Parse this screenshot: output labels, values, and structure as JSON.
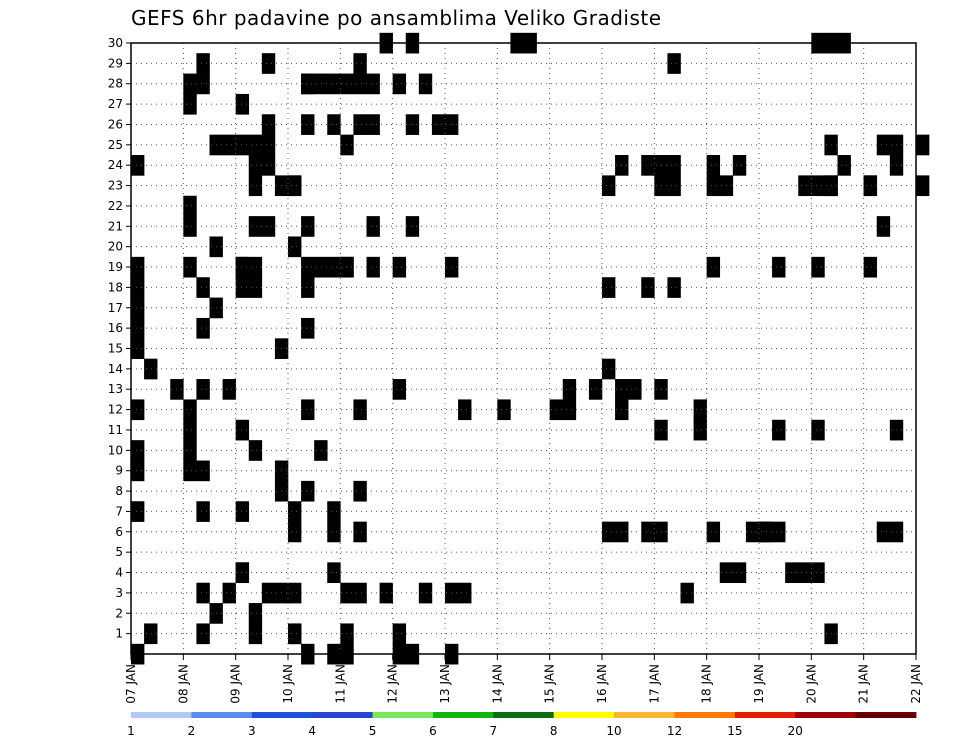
{
  "title": "GEFS 6hr padavine po ansamblima Veliko Gradiste",
  "chart_data": {
    "type": "heatmap",
    "title": "GEFS 6hr padavine po ansamblima Veliko Gradiste",
    "x_ticks": [
      "07 JAN",
      "08 JAN",
      "09 JAN",
      "10 JAN",
      "11 JAN",
      "12 JAN",
      "13 JAN",
      "14 JAN",
      "15 JAN",
      "16 JAN",
      "17 JAN",
      "18 JAN",
      "19 JAN",
      "20 JAN",
      "21 JAN",
      "22 JAN"
    ],
    "y_ticks": [
      "1",
      "2",
      "3",
      "4",
      "5",
      "6",
      "7",
      "8",
      "9",
      "10",
      "11",
      "12",
      "13",
      "14",
      "15",
      "16",
      "17",
      "18",
      "19",
      "20",
      "21",
      "22",
      "23",
      "24",
      "25",
      "26",
      "27",
      "28",
      "29",
      "30"
    ],
    "x_range": [
      "07 JAN 00Z",
      "22 JAN 00Z"
    ],
    "step_hours": 6,
    "y_range": [
      0,
      30
    ],
    "grid": true,
    "colorbar": {
      "levels": [
        "1",
        "2",
        "3",
        "4",
        "5",
        "6",
        "7",
        "8",
        "10",
        "12",
        "15",
        "20"
      ],
      "colors": [
        "#b4c8f5",
        "#5a8cf0",
        "#1e50dc",
        "#2846d2",
        "#78e65a",
        "#14b414",
        "#0a6e14",
        "#ffff00",
        "#ffb432",
        "#ff7800",
        "#e61e00",
        "#a00000",
        "#640000"
      ]
    },
    "cells": [
      [
        30,
        4,
        3
      ],
      [
        30,
        5,
        1
      ],
      [
        30,
        7,
        1
      ],
      [
        30,
        7,
        2
      ],
      [
        30,
        13,
        0
      ],
      [
        30,
        13,
        1
      ],
      [
        30,
        13,
        2
      ],
      [
        29,
        1,
        1
      ],
      [
        29,
        2,
        9
      ],
      [
        29,
        2,
        2
      ],
      [
        29,
        10,
        1
      ],
      [
        28,
        1,
        0
      ],
      [
        28,
        1,
        1
      ],
      [
        28,
        2,
        5
      ],
      [
        28,
        2,
        6
      ],
      [
        28,
        3,
        1
      ],
      [
        28,
        3,
        3
      ],
      [
        28,
        4,
        0
      ],
      [
        28,
        4,
        1
      ],
      [
        28,
        4,
        2
      ],
      [
        28,
        5,
        0
      ],
      [
        28,
        5,
        2
      ],
      [
        27,
        1,
        0
      ],
      [
        27,
        2,
        0
      ],
      [
        26,
        2,
        2
      ],
      [
        26,
        3,
        1
      ],
      [
        26,
        3,
        3
      ],
      [
        26,
        4,
        1
      ],
      [
        26,
        4,
        2
      ],
      [
        26,
        5,
        3
      ],
      [
        26,
        5,
        1
      ],
      [
        26,
        6,
        0
      ],
      [
        25,
        1,
        3
      ],
      [
        25,
        1,
        4
      ],
      [
        25,
        1,
        2
      ],
      [
        25,
        2,
        2
      ],
      [
        25,
        2,
        1
      ],
      [
        25,
        4,
        0
      ],
      [
        25,
        13,
        1
      ],
      [
        25,
        14,
        2
      ],
      [
        25,
        14,
        1
      ],
      [
        25,
        15,
        0
      ],
      [
        24,
        0,
        0
      ],
      [
        24,
        1,
        5
      ],
      [
        24,
        2,
        2
      ],
      [
        24,
        10,
        0
      ],
      [
        24,
        10,
        1
      ],
      [
        24,
        9,
        1
      ],
      [
        24,
        9,
        3
      ],
      [
        24,
        11,
        2
      ],
      [
        24,
        11,
        0
      ],
      [
        24,
        13,
        2
      ],
      [
        24,
        14,
        2
      ],
      [
        23,
        2,
        1
      ],
      [
        23,
        2,
        4
      ],
      [
        23,
        2,
        3
      ],
      [
        23,
        3,
        0
      ],
      [
        23,
        9,
        0
      ],
      [
        23,
        9,
        5
      ],
      [
        23,
        10,
        0
      ],
      [
        23,
        10,
        4
      ],
      [
        23,
        11,
        1
      ],
      [
        23,
        11,
        9
      ],
      [
        23,
        12,
        3
      ],
      [
        23,
        12,
        5
      ],
      [
        23,
        13,
        0
      ],
      [
        23,
        13,
        4
      ],
      [
        23,
        14,
        0
      ],
      [
        23,
        15,
        0
      ],
      [
        23,
        16,
        0
      ],
      [
        22,
        1,
        0
      ],
      [
        21,
        1,
        0
      ],
      [
        21,
        2,
        1
      ],
      [
        21,
        2,
        2
      ],
      [
        21,
        3,
        6
      ],
      [
        21,
        3,
        1
      ],
      [
        21,
        5,
        1
      ],
      [
        21,
        14,
        1
      ],
      [
        20,
        1,
        2
      ],
      [
        20,
        2,
        4
      ],
      [
        19,
        0,
        0
      ],
      [
        19,
        1,
        0
      ],
      [
        19,
        1,
        4
      ],
      [
        19,
        2,
        5
      ],
      [
        19,
        2,
        0
      ],
      [
        19,
        2,
        1
      ],
      [
        19,
        3,
        2
      ],
      [
        19,
        3,
        4
      ],
      [
        19,
        3,
        3
      ],
      [
        19,
        4,
        2
      ],
      [
        19,
        4,
        0
      ],
      [
        19,
        5,
        0
      ],
      [
        19,
        6,
        0
      ],
      [
        19,
        11,
        0
      ],
      [
        19,
        12,
        1
      ],
      [
        19,
        13,
        0
      ],
      [
        19,
        14,
        0
      ],
      [
        18,
        0,
        0
      ],
      [
        18,
        1,
        1
      ],
      [
        18,
        1,
        9
      ],
      [
        18,
        2,
        1
      ],
      [
        18,
        2,
        0
      ],
      [
        18,
        9,
        0
      ],
      [
        18,
        9,
        3
      ],
      [
        18,
        10,
        1
      ],
      [
        17,
        0,
        0
      ],
      [
        17,
        1,
        2
      ],
      [
        16,
        0,
        0
      ],
      [
        16,
        1,
        1
      ],
      [
        16,
        2,
        5
      ],
      [
        15,
        0,
        0
      ],
      [
        15,
        2,
        3
      ],
      [
        15,
        16,
        0
      ],
      [
        14,
        0,
        1
      ],
      [
        14,
        9,
        0
      ],
      [
        13,
        0,
        3
      ],
      [
        13,
        1,
        3
      ],
      [
        13,
        1,
        1
      ],
      [
        13,
        5,
        0
      ],
      [
        13,
        8,
        3
      ],
      [
        13,
        8,
        1
      ],
      [
        13,
        9,
        1
      ],
      [
        13,
        9,
        2
      ],
      [
        13,
        10,
        0
      ],
      [
        12,
        0,
        0
      ],
      [
        12,
        1,
        0
      ],
      [
        12,
        1,
        9
      ],
      [
        12,
        2,
        9
      ],
      [
        12,
        6,
        1
      ],
      [
        12,
        7,
        0
      ],
      [
        12,
        8,
        0
      ],
      [
        12,
        8,
        1
      ],
      [
        12,
        9,
        1
      ],
      [
        12,
        10,
        3
      ],
      [
        11,
        1,
        0
      ],
      [
        11,
        2,
        0
      ],
      [
        11,
        10,
        3
      ],
      [
        11,
        10,
        0
      ],
      [
        11,
        12,
        1
      ],
      [
        11,
        13,
        0
      ],
      [
        11,
        14,
        2
      ],
      [
        11,
        16,
        3
      ],
      [
        10,
        0,
        0
      ],
      [
        10,
        1,
        0
      ],
      [
        10,
        2,
        6
      ],
      [
        10,
        2,
        1
      ],
      [
        9,
        0,
        0
      ],
      [
        9,
        1,
        0
      ],
      [
        9,
        1,
        1
      ],
      [
        9,
        2,
        3
      ],
      [
        8,
        2,
        3
      ],
      [
        8,
        2,
        5
      ],
      [
        8,
        3,
        5
      ],
      [
        7,
        0,
        0
      ],
      [
        7,
        1,
        1
      ],
      [
        7,
        1,
        8
      ],
      [
        7,
        2,
        0
      ],
      [
        7,
        3,
        3
      ],
      [
        6,
        2,
        9
      ],
      [
        6,
        3,
        3
      ],
      [
        6,
        3,
        0
      ],
      [
        6,
        9,
        0
      ],
      [
        6,
        9,
        3
      ],
      [
        6,
        9,
        1
      ],
      [
        6,
        10,
        0
      ],
      [
        6,
        10,
        8
      ],
      [
        6,
        11,
        3
      ],
      [
        6,
        11,
        0
      ],
      [
        6,
        12,
        0
      ],
      [
        6,
        12,
        1
      ],
      [
        6,
        14,
        2
      ],
      [
        6,
        14,
        1
      ],
      [
        4,
        1,
        4
      ],
      [
        4,
        2,
        0
      ],
      [
        4,
        3,
        3
      ],
      [
        4,
        11,
        2
      ],
      [
        4,
        11,
        1
      ],
      [
        4,
        12,
        2
      ],
      [
        4,
        12,
        3
      ],
      [
        4,
        13,
        0
      ],
      [
        3,
        1,
        3
      ],
      [
        3,
        1,
        1
      ],
      [
        3,
        2,
        11
      ],
      [
        3,
        2,
        2
      ],
      [
        3,
        2,
        3
      ],
      [
        3,
        3,
        10
      ],
      [
        3,
        3,
        4
      ],
      [
        3,
        3,
        0
      ],
      [
        3,
        4,
        1
      ],
      [
        3,
        6,
        0
      ],
      [
        3,
        6,
        1
      ],
      [
        3,
        10,
        2
      ],
      [
        2,
        1,
        2
      ],
      [
        2,
        2,
        1
      ],
      [
        1,
        0,
        1
      ],
      [
        1,
        1,
        1
      ],
      [
        1,
        2,
        4
      ],
      [
        1,
        2,
        1
      ],
      [
        1,
        3,
        0
      ],
      [
        1,
        4,
        0
      ],
      [
        1,
        5,
        0
      ],
      [
        1,
        13,
        1
      ],
      [
        0,
        0,
        0
      ],
      [
        0,
        3,
        3
      ],
      [
        0,
        3,
        1
      ],
      [
        0,
        4,
        0
      ],
      [
        0,
        4,
        5
      ],
      [
        0,
        5,
        0
      ],
      [
        0,
        6,
        0
      ]
    ]
  }
}
